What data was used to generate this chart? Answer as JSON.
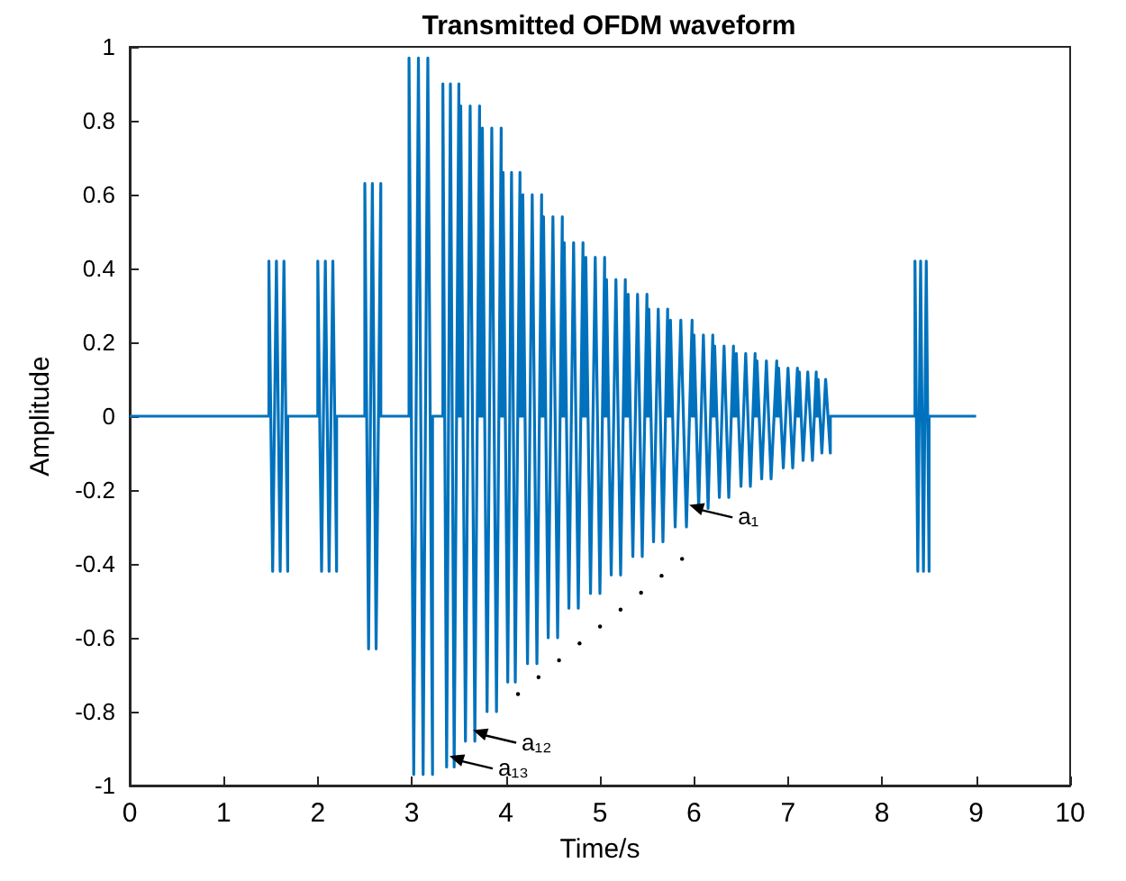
{
  "chart_data": {
    "type": "line",
    "title": "Transmitted OFDM waveform",
    "xlabel": "Time/s",
    "ylabel": "Amplitude",
    "xlim": [
      0,
      10
    ],
    "xticks": [
      0,
      1,
      2,
      3,
      4,
      5,
      6,
      7,
      8,
      9,
      10
    ],
    "ylim": [
      -1,
      1
    ],
    "yticks": [
      -1,
      -0.8,
      -0.6,
      -0.4,
      -0.2,
      0,
      0.2,
      0.4,
      0.6,
      0.8,
      1
    ],
    "grid": false,
    "marker": "none",
    "line_style": "solid",
    "annotations": [
      {
        "text": "a₁",
        "x": 5.95,
        "y": -0.24
      },
      {
        "text": "a₁₂",
        "x": 3.65,
        "y": -0.85
      },
      {
        "text": "a₁₃",
        "x": 3.4,
        "y": -0.92
      }
    ],
    "series": [
      {
        "color": "#0072bd",
        "x": [
          0,
          1.48,
          1.48,
          1.52,
          1.56,
          1.6,
          1.64,
          1.68,
          1.68,
          2.0,
          2.0,
          2.04,
          2.08,
          2.12,
          2.16,
          2.2,
          2.2,
          2.5,
          2.5,
          2.54,
          2.58,
          2.62,
          2.67,
          2.67,
          2.97,
          2.97,
          3.02,
          3.07,
          3.12,
          3.17,
          3.22,
          3.22,
          3.33,
          3.33,
          3.37,
          3.41,
          3.45,
          3.5,
          3.5,
          3.52,
          3.52,
          3.57,
          3.62,
          3.67,
          3.72,
          3.72,
          3.75,
          3.75,
          3.8,
          3.85,
          3.9,
          3.95,
          3.95,
          3.97,
          3.97,
          4.02,
          4.06,
          4.1,
          4.15,
          4.15,
          4.18,
          4.18,
          4.23,
          4.28,
          4.33,
          4.38,
          4.38,
          4.4,
          4.4,
          4.45,
          4.5,
          4.55,
          4.6,
          4.6,
          4.62,
          4.62,
          4.67,
          4.72,
          4.77,
          4.82,
          4.82,
          4.85,
          4.85,
          4.9,
          4.95,
          5.0,
          5.05,
          5.05,
          5.07,
          5.07,
          5.12,
          5.17,
          5.22,
          5.27,
          5.27,
          5.3,
          5.3,
          5.35,
          5.4,
          5.45,
          5.5,
          5.5,
          5.52,
          5.52,
          5.57,
          5.62,
          5.67,
          5.72,
          5.72,
          5.75,
          5.75,
          5.8,
          5.86,
          5.92,
          5.98,
          5.98,
          6.0,
          6.0,
          6.05,
          6.1,
          6.15,
          6.2,
          6.2,
          6.22,
          6.22,
          6.27,
          6.32,
          6.37,
          6.42,
          6.42,
          6.45,
          6.45,
          6.5,
          6.55,
          6.6,
          6.65,
          6.65,
          6.67,
          6.67,
          6.72,
          6.77,
          6.82,
          6.88,
          6.88,
          6.9,
          6.9,
          6.95,
          7.0,
          7.05,
          7.1,
          7.1,
          7.12,
          7.12,
          7.16,
          7.21,
          7.26,
          7.3,
          7.3,
          7.32,
          7.32,
          7.36,
          7.4,
          7.45,
          7.45,
          8.35,
          8.35,
          8.38,
          8.41,
          8.44,
          8.47,
          8.5,
          8.5,
          9
        ],
        "values": [
          0,
          0,
          0.42,
          -0.42,
          0.42,
          -0.42,
          0.42,
          -0.42,
          0,
          0,
          0.42,
          -0.42,
          0.42,
          -0.42,
          0.42,
          -0.42,
          0,
          0,
          0.63,
          -0.63,
          0.63,
          -0.63,
          0.63,
          0,
          0,
          0.97,
          -0.97,
          0.97,
          -0.97,
          0.97,
          -0.97,
          0,
          0,
          0.9,
          -0.95,
          0.9,
          -0.95,
          0.9,
          0,
          0,
          0.84,
          -0.88,
          0.84,
          -0.88,
          0.84,
          0,
          0,
          0.78,
          -0.8,
          0.78,
          -0.8,
          0.78,
          0,
          0,
          0.66,
          -0.72,
          0.66,
          -0.72,
          0.66,
          0,
          0,
          0.6,
          -0.67,
          0.6,
          -0.67,
          0.6,
          0,
          0,
          0.54,
          -0.6,
          0.54,
          -0.6,
          0.54,
          0,
          0,
          0.47,
          -0.52,
          0.47,
          -0.52,
          0.47,
          0,
          0,
          0.43,
          -0.48,
          0.43,
          -0.48,
          0.43,
          0,
          0,
          0.37,
          -0.43,
          0.37,
          -0.43,
          0.37,
          0,
          0,
          0.33,
          -0.38,
          0.33,
          -0.38,
          0.33,
          0,
          0,
          0.29,
          -0.34,
          0.29,
          -0.34,
          0.29,
          0,
          0,
          0.26,
          -0.3,
          0.26,
          -0.3,
          0.26,
          0,
          0,
          0.22,
          -0.25,
          0.22,
          -0.25,
          0.22,
          0,
          0,
          0.19,
          -0.22,
          0.19,
          -0.22,
          0.19,
          0,
          0,
          0.17,
          -0.19,
          0.17,
          -0.19,
          0.17,
          0,
          0,
          0.15,
          -0.17,
          0.15,
          -0.17,
          0.15,
          0,
          0,
          0.13,
          -0.14,
          0.13,
          -0.14,
          0.13,
          0,
          0,
          0.12,
          -0.12,
          0.12,
          -0.12,
          0.12,
          0,
          0,
          0.1,
          -0.1,
          0.1,
          -0.1,
          0,
          0,
          0.42,
          -0.42,
          0.42,
          -0.42,
          0.42,
          -0.42,
          0,
          0
        ]
      }
    ]
  }
}
